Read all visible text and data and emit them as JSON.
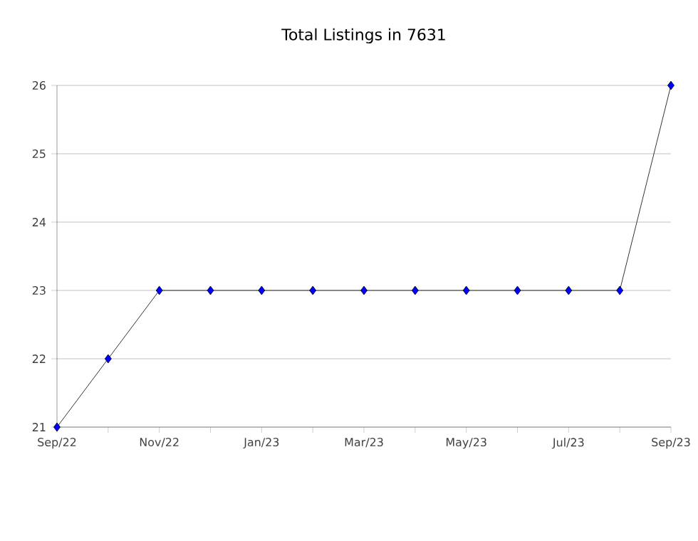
{
  "chart_data": {
    "type": "line",
    "title": "Total Listings in 7631",
    "categories": [
      "Sep/22",
      null,
      "Nov/22",
      null,
      "Jan/23",
      null,
      "Mar/23",
      null,
      "May/23",
      null,
      "Jul/23",
      null,
      "Sep/23"
    ],
    "values": [
      21,
      22,
      23,
      23,
      23,
      23,
      23,
      23,
      23,
      23,
      23,
      23,
      26
    ],
    "color": "#0000ff",
    "ylim": [
      21,
      26
    ],
    "yticks": [
      21,
      22,
      23,
      24,
      25,
      26
    ],
    "grid": "y",
    "marker": "diamond",
    "line_style": "solid"
  }
}
